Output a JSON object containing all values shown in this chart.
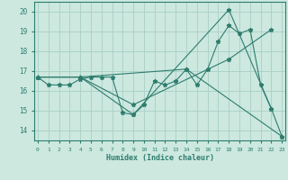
{
  "xlabel": "Humidex (Indice chaleur)",
  "ylabel": "",
  "bg_color": "#cce8df",
  "line_color": "#2e7d6e",
  "grid_color": "#aacfc5",
  "lines": [
    {
      "x": [
        0,
        1,
        2,
        3,
        4,
        5,
        6,
        7,
        8,
        9,
        10,
        11,
        12,
        13,
        14,
        15,
        16,
        17,
        18,
        19,
        20,
        21,
        22,
        23
      ],
      "y": [
        16.7,
        16.3,
        16.3,
        16.3,
        16.6,
        16.7,
        16.7,
        16.7,
        14.9,
        14.8,
        15.3,
        16.5,
        16.3,
        16.5,
        17.1,
        16.3,
        17.1,
        18.5,
        19.3,
        18.9,
        19.1,
        16.3,
        15.1,
        13.7
      ]
    },
    {
      "x": [
        0,
        4,
        9,
        18,
        22
      ],
      "y": [
        16.7,
        16.7,
        14.8,
        20.1,
        15.1
      ]
    },
    {
      "x": [
        0,
        4,
        14,
        23
      ],
      "y": [
        16.7,
        16.7,
        17.1,
        13.7
      ]
    },
    {
      "x": [
        0,
        4,
        9,
        18,
        22
      ],
      "y": [
        16.7,
        16.7,
        15.3,
        17.6,
        19.1
      ]
    }
  ],
  "xlim": [
    -0.3,
    23.3
  ],
  "ylim": [
    13.5,
    20.5
  ],
  "yticks": [
    14,
    15,
    16,
    17,
    18,
    19,
    20
  ],
  "xticks": [
    0,
    1,
    2,
    3,
    4,
    5,
    6,
    7,
    8,
    9,
    10,
    11,
    12,
    13,
    14,
    15,
    16,
    17,
    18,
    19,
    20,
    21,
    22,
    23
  ]
}
